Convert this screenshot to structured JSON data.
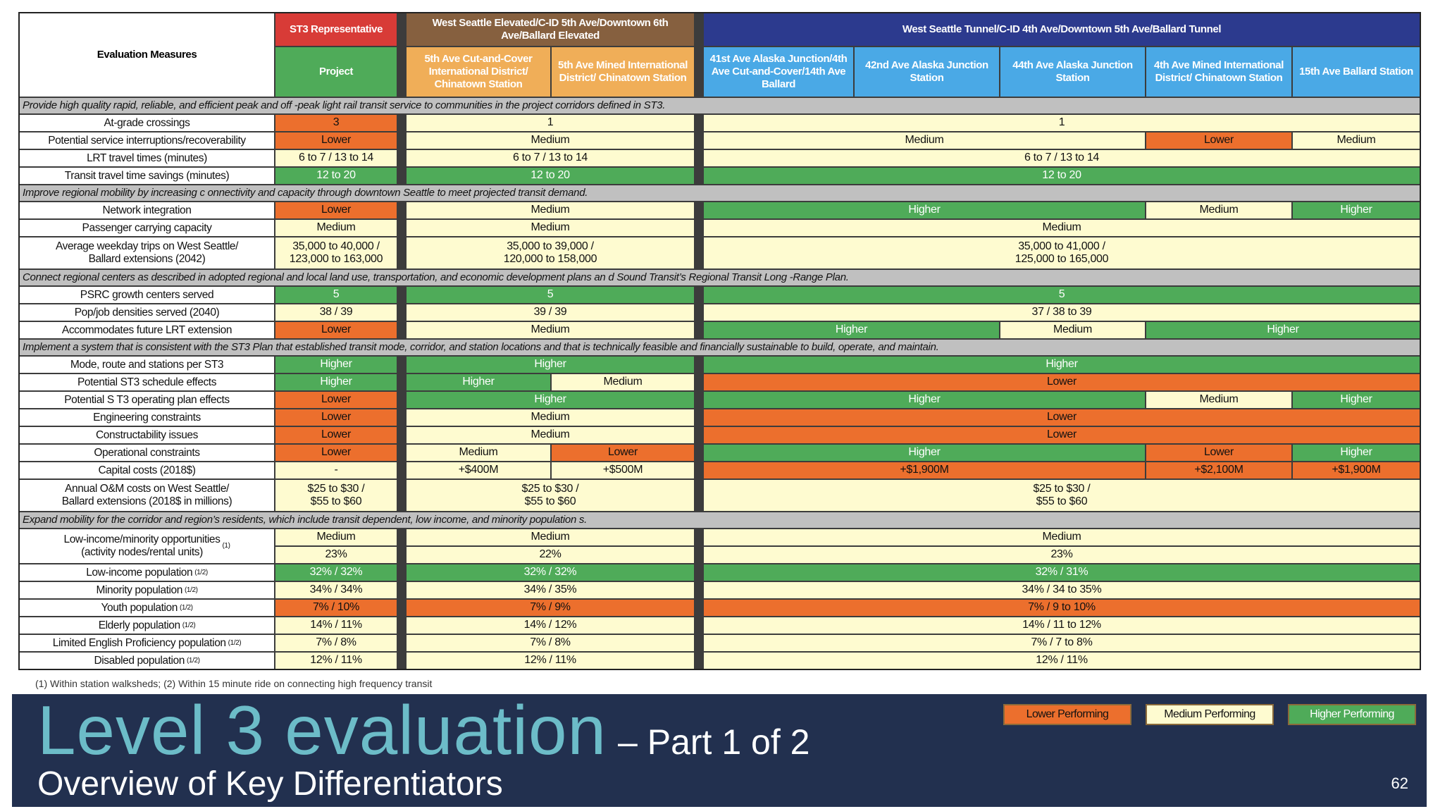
{
  "colors": {
    "lower": "#ec6f2d",
    "medium": "#fefbd0",
    "higher": "#4fab59",
    "st3_header": "#d83b37",
    "elevated_header": "#86603f",
    "elevated_sub": "#f0ae58",
    "tunnel_header": "#2c3a8e",
    "tunnel_sub": "#4aa9e6",
    "project": "#4fab59",
    "section": "#c0c0c0",
    "band": "#22304f",
    "title": "#6cbcc8"
  },
  "header": {
    "measures_label": "Evaluation Measures",
    "st3_group": "ST3 Representative",
    "st3_sub": "Project",
    "elevated_group": "West Seattle Elevated/C-ID 5th Ave/Downtown 6th Ave/Ballard Elevated",
    "elevated_subs": [
      "5th Ave Cut-and-Cover International District/ Chinatown Station",
      "5th Ave Mined International District/ Chinatown Station"
    ],
    "tunnel_group": "West Seattle Tunnel/C-ID 4th  Ave/Downtown 5th Ave/Ballard Tunnel",
    "tunnel_subs": [
      "41st Ave Alaska Junction/4th Ave Cut-and-Cover/14th Ave Ballard",
      "42nd Ave Alaska Junction Station",
      "44th Ave Alaska Junction Station",
      "4th Ave Mined International District/ Chinatown Station",
      "15th Ave Ballard Station"
    ]
  },
  "rows": [
    {
      "section": "Provide high quality rapid, reliable, and efficient peak and off -peak light rail transit service to communities in the  project corridors defined in ST3."
    },
    {
      "label": "At-grade crossings",
      "cells": [
        {
          "t": "3",
          "r": "lower",
          "c": [
            "st3",
            "st3"
          ]
        },
        {
          "t": "1",
          "r": "medium",
          "c": [
            "cut",
            "mined"
          ]
        },
        {
          "t": "1",
          "r": "medium",
          "c": [
            "c41",
            "c15"
          ]
        }
      ]
    },
    {
      "label": "Potential service interruptions/recoverability",
      "cells": [
        {
          "t": "Lower",
          "r": "lower",
          "c": [
            "st3",
            "st3"
          ]
        },
        {
          "t": "Medium",
          "r": "medium",
          "c": [
            "cut",
            "mined"
          ]
        },
        {
          "t": "Medium",
          "r": "medium",
          "c": [
            "c41",
            "c44"
          ]
        },
        {
          "t": "Lower",
          "r": "lower",
          "c": [
            "c4m",
            "c4m"
          ]
        },
        {
          "t": "Medium",
          "r": "medium",
          "c": [
            "c15",
            "c15"
          ]
        }
      ]
    },
    {
      "label": "LRT travel times (minutes)",
      "cells": [
        {
          "t": "6 to 7 / 13 to 14",
          "r": "medium",
          "c": [
            "st3",
            "st3"
          ]
        },
        {
          "t": "6 to 7 / 13 to 14",
          "r": "medium",
          "c": [
            "cut",
            "mined"
          ]
        },
        {
          "t": "6 to 7 / 13 to 14",
          "r": "medium",
          "c": [
            "c41",
            "c15"
          ]
        }
      ]
    },
    {
      "label": "Transit travel time savings (minutes)",
      "cells": [
        {
          "t": "12 to 20",
          "r": "higher",
          "c": [
            "st3",
            "st3"
          ]
        },
        {
          "t": "12 to 20",
          "r": "higher",
          "c": [
            "cut",
            "mined"
          ]
        },
        {
          "t": "12 to 20",
          "r": "higher",
          "c": [
            "c41",
            "c15"
          ]
        }
      ]
    },
    {
      "section": "Improve regional mobility by increasing c onnectivity and capacity through downtown Seattle to meet projected  transit demand."
    },
    {
      "label": "Network integration",
      "cells": [
        {
          "t": "Lower",
          "r": "lower",
          "c": [
            "st3",
            "st3"
          ]
        },
        {
          "t": "Medium",
          "r": "medium",
          "c": [
            "cut",
            "mined"
          ]
        },
        {
          "t": "Higher",
          "r": "higher",
          "c": [
            "c41",
            "c44"
          ]
        },
        {
          "t": "Medium",
          "r": "medium",
          "c": [
            "c4m",
            "c4m"
          ]
        },
        {
          "t": "Higher",
          "r": "higher",
          "c": [
            "c15",
            "c15"
          ]
        }
      ]
    },
    {
      "label": "Passenger carrying capacity",
      "cells": [
        {
          "t": "Medium",
          "r": "medium",
          "c": [
            "st3",
            "st3"
          ]
        },
        {
          "t": "Medium",
          "r": "medium",
          "c": [
            "cut",
            "mined"
          ]
        },
        {
          "t": "Medium",
          "r": "medium",
          "c": [
            "c41",
            "c15"
          ]
        }
      ]
    },
    {
      "label": "Average weekday trips on West Seattle/\nBallard extensions (2042)",
      "tall": true,
      "cells": [
        {
          "t": "35,000 to 40,000 /\n123,000 to 163,000",
          "r": "medium",
          "c": [
            "st3",
            "st3"
          ]
        },
        {
          "t": "35,000 to 39,000 /\n120,000 to 158,000",
          "r": "medium",
          "c": [
            "cut",
            "mined"
          ]
        },
        {
          "t": "35,000 to 41,000 /\n125,000 to 165,000",
          "r": "medium",
          "c": [
            "c41",
            "c15"
          ]
        }
      ]
    },
    {
      "section": "Connect regional centers as described in adopted regional and local land use,  transportation, and economic development plans an  d Sound Transit’s Regional Transit Long -Range Plan."
    },
    {
      "label": "PSRC growth centers served",
      "cells": [
        {
          "t": "5",
          "r": "higher",
          "c": [
            "st3",
            "st3"
          ]
        },
        {
          "t": "5",
          "r": "higher",
          "c": [
            "cut",
            "mined"
          ]
        },
        {
          "t": "5",
          "r": "higher",
          "c": [
            "c41",
            "c15"
          ]
        }
      ]
    },
    {
      "label": "Pop/job densities served (2040)",
      "cells": [
        {
          "t": "38 / 39",
          "r": "medium",
          "c": [
            "st3",
            "st3"
          ]
        },
        {
          "t": "39 / 39",
          "r": "medium",
          "c": [
            "cut",
            "mined"
          ]
        },
        {
          "t": "37 / 38 to 39",
          "r": "medium",
          "c": [
            "c41",
            "c15"
          ]
        }
      ]
    },
    {
      "label": "Accommodates future LRT extension",
      "cells": [
        {
          "t": "Lower",
          "r": "lower",
          "c": [
            "st3",
            "st3"
          ]
        },
        {
          "t": "Medium",
          "r": "medium",
          "c": [
            "cut",
            "mined"
          ]
        },
        {
          "t": "Higher",
          "r": "higher",
          "c": [
            "c41",
            "c42"
          ]
        },
        {
          "t": "Medium",
          "r": "medium",
          "c": [
            "c44",
            "c44"
          ]
        },
        {
          "t": "Higher",
          "r": "higher",
          "c": [
            "c4m",
            "c15"
          ]
        }
      ]
    },
    {
      "section": "Implement a system that is consistent with the ST3 Plan that  established transit mode, corridor, and station locations and that  is technically feasible and financially sustainable to build, operate, and  maintain."
    },
    {
      "label": "Mode, route and stations per ST3",
      "cells": [
        {
          "t": "Higher",
          "r": "higher",
          "c": [
            "st3",
            "st3"
          ]
        },
        {
          "t": "Higher",
          "r": "higher",
          "c": [
            "cut",
            "mined"
          ]
        },
        {
          "t": "Higher",
          "r": "higher",
          "c": [
            "c41",
            "c15"
          ]
        }
      ]
    },
    {
      "label": "Potential ST3 schedule effects",
      "cells": [
        {
          "t": "Higher",
          "r": "higher",
          "c": [
            "st3",
            "st3"
          ]
        },
        {
          "t": "Higher",
          "r": "higher",
          "c": [
            "cut",
            "cut"
          ]
        },
        {
          "t": "Medium",
          "r": "medium",
          "c": [
            "mined",
            "mined"
          ]
        },
        {
          "t": "Lower",
          "r": "lower",
          "c": [
            "c41",
            "c15"
          ]
        }
      ]
    },
    {
      "label": "Potential S T3 operating plan effects",
      "cells": [
        {
          "t": "Lower",
          "r": "lower",
          "c": [
            "st3",
            "st3"
          ]
        },
        {
          "t": "Higher",
          "r": "higher",
          "c": [
            "cut",
            "mined"
          ]
        },
        {
          "t": "Higher",
          "r": "higher",
          "c": [
            "c41",
            "c44"
          ]
        },
        {
          "t": "Medium",
          "r": "medium",
          "c": [
            "c4m",
            "c4m"
          ]
        },
        {
          "t": "Higher",
          "r": "higher",
          "c": [
            "c15",
            "c15"
          ]
        }
      ]
    },
    {
      "label": "Engineering constraints",
      "cells": [
        {
          "t": "Lower",
          "r": "lower",
          "c": [
            "st3",
            "st3"
          ]
        },
        {
          "t": "Medium",
          "r": "medium",
          "c": [
            "cut",
            "mined"
          ]
        },
        {
          "t": "Lower",
          "r": "lower",
          "c": [
            "c41",
            "c15"
          ]
        }
      ]
    },
    {
      "label": "Constructability issues",
      "cells": [
        {
          "t": "Lower",
          "r": "lower",
          "c": [
            "st3",
            "st3"
          ]
        },
        {
          "t": "Medium",
          "r": "medium",
          "c": [
            "cut",
            "mined"
          ]
        },
        {
          "t": "Lower",
          "r": "lower",
          "c": [
            "c41",
            "c15"
          ]
        }
      ]
    },
    {
      "label": "Operational constraints",
      "cells": [
        {
          "t": "Lower",
          "r": "lower",
          "c": [
            "st3",
            "st3"
          ]
        },
        {
          "t": "Medium",
          "r": "medium",
          "c": [
            "cut",
            "cut"
          ]
        },
        {
          "t": "Lower",
          "r": "lower",
          "c": [
            "mined",
            "mined"
          ]
        },
        {
          "t": "Higher",
          "r": "higher",
          "c": [
            "c41",
            "c44"
          ]
        },
        {
          "t": "Lower",
          "r": "lower",
          "c": [
            "c4m",
            "c4m"
          ]
        },
        {
          "t": "Higher",
          "r": "higher",
          "c": [
            "c15",
            "c15"
          ]
        }
      ]
    },
    {
      "label": "Capital costs (2018$)",
      "cells": [
        {
          "t": "-",
          "r": "medium",
          "c": [
            "st3",
            "st3"
          ]
        },
        {
          "t": "+$400M",
          "r": "medium",
          "c": [
            "cut",
            "cut"
          ]
        },
        {
          "t": "+$500M",
          "r": "medium",
          "c": [
            "mined",
            "mined"
          ]
        },
        {
          "t": "+$1,900M",
          "r": "lower",
          "c": [
            "c41",
            "c44"
          ]
        },
        {
          "t": "+$2,100M",
          "r": "lower",
          "c": [
            "c4m",
            "c4m"
          ]
        },
        {
          "t": "+$1,900M",
          "r": "lower",
          "c": [
            "c15",
            "c15"
          ]
        }
      ]
    },
    {
      "label": "Annual O&M costs on West Seattle/\nBallard extensions (2018$ in millions)",
      "tall": true,
      "cells": [
        {
          "t": "$25 to $30 /\n$55 to $60",
          "r": "medium",
          "c": [
            "st3",
            "st3"
          ]
        },
        {
          "t": "$25 to $30 /\n$55 to $60",
          "r": "medium",
          "c": [
            "cut",
            "mined"
          ]
        },
        {
          "t": "$25 to $30 /\n$55 to $60",
          "r": "medium",
          "c": [
            "c41",
            "c15"
          ]
        }
      ]
    },
    {
      "section": "Expand mobility for the corridor and  region’s residents, which include  transit dependent, low income, and minority population  s."
    },
    {
      "label": "Low-income/minority opportunities\n(activity nodes/rental units)",
      "sup": "(1)",
      "subrows": [
        [
          {
            "t": "Medium",
            "r": "medium",
            "c": [
              "st3",
              "st3"
            ]
          },
          {
            "t": "Medium",
            "r": "medium",
            "c": [
              "cut",
              "mined"
            ]
          },
          {
            "t": "Medium",
            "r": "medium",
            "c": [
              "c41",
              "c15"
            ]
          }
        ],
        [
          {
            "t": "23%",
            "r": "medium",
            "c": [
              "st3",
              "st3"
            ]
          },
          {
            "t": "22%",
            "r": "medium",
            "c": [
              "cut",
              "mined"
            ]
          },
          {
            "t": "23%",
            "r": "medium",
            "c": [
              "c41",
              "c15"
            ]
          }
        ]
      ]
    },
    {
      "label": "Low-income population",
      "sup": "(1/2)",
      "cells": [
        {
          "t": "32% / 32%",
          "r": "higher",
          "c": [
            "st3",
            "st3"
          ]
        },
        {
          "t": "32% / 32%",
          "r": "higher",
          "c": [
            "cut",
            "mined"
          ]
        },
        {
          "t": "32% / 31%",
          "r": "higher",
          "c": [
            "c41",
            "c15"
          ]
        }
      ]
    },
    {
      "label": "Minority population",
      "sup": "(1/2)",
      "cells": [
        {
          "t": "34% / 34%",
          "r": "medium",
          "c": [
            "st3",
            "st3"
          ]
        },
        {
          "t": "34% / 35%",
          "r": "medium",
          "c": [
            "cut",
            "mined"
          ]
        },
        {
          "t": "34% / 34 to 35%",
          "r": "medium",
          "c": [
            "c41",
            "c15"
          ]
        }
      ]
    },
    {
      "label": "Youth population",
      "sup": "(1/2)",
      "cells": [
        {
          "t": "7% / 10%",
          "r": "lower",
          "c": [
            "st3",
            "st3"
          ]
        },
        {
          "t": "7% / 9%",
          "r": "lower",
          "c": [
            "cut",
            "mined"
          ]
        },
        {
          "t": "7% / 9 to 10%",
          "r": "lower",
          "c": [
            "c41",
            "c15"
          ]
        }
      ]
    },
    {
      "label": "Elderly population",
      "sup": "(1/2)",
      "cells": [
        {
          "t": "14% / 11%",
          "r": "medium",
          "c": [
            "st3",
            "st3"
          ]
        },
        {
          "t": "14% / 12%",
          "r": "medium",
          "c": [
            "cut",
            "mined"
          ]
        },
        {
          "t": "14% / 11 to 12%",
          "r": "medium",
          "c": [
            "c41",
            "c15"
          ]
        }
      ]
    },
    {
      "label": "Limited English Proficiency population",
      "sup": "(1/2)",
      "cells": [
        {
          "t": "7% / 8%",
          "r": "medium",
          "c": [
            "st3",
            "st3"
          ]
        },
        {
          "t": "7% / 8%",
          "r": "medium",
          "c": [
            "cut",
            "mined"
          ]
        },
        {
          "t": "7% / 7 to 8%",
          "r": "medium",
          "c": [
            "c41",
            "c15"
          ]
        }
      ]
    },
    {
      "label": "Disabled population",
      "sup": "(1/2)",
      "cells": [
        {
          "t": "12% / 11%",
          "r": "medium",
          "c": [
            "st3",
            "st3"
          ]
        },
        {
          "t": "12% / 11%",
          "r": "medium",
          "c": [
            "cut",
            "mined"
          ]
        },
        {
          "t": "12% / 11%",
          "r": "medium",
          "c": [
            "c41",
            "c15"
          ]
        }
      ]
    }
  ],
  "footnote": "(1) Within station walksheds; (2) Within 15 minute ride  on connecting high frequency transit",
  "slide": {
    "title": "Level 3 evaluation",
    "title_suffix": "– Part 1 of 2",
    "subtitle": "Overview of Key Differentiators",
    "page_number": "62"
  },
  "legend": [
    {
      "label": "Lower Performing",
      "rating": "lower"
    },
    {
      "label": "Medium Performing",
      "rating": "medium"
    },
    {
      "label": "Higher Performing",
      "rating": "higher"
    }
  ]
}
